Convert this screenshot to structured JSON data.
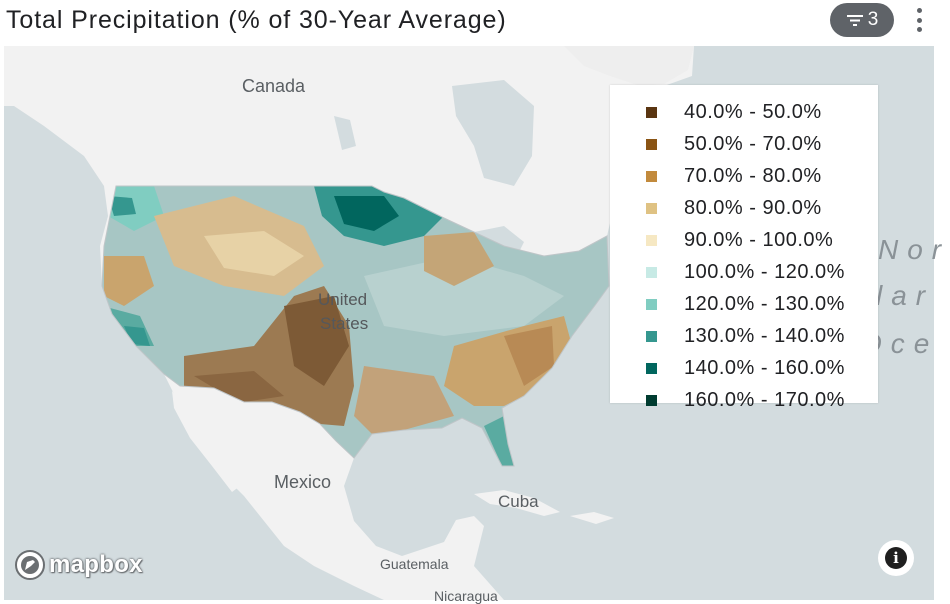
{
  "header": {
    "title": "Total Precipitation (% of 30-Year Average)",
    "filter_count": "3",
    "filter_icon": "filter-icon",
    "menu_icon": "kebab-menu-icon"
  },
  "map": {
    "labels": {
      "canada": "Canada",
      "united": "United",
      "states": "States",
      "mexico": "Mexico",
      "cuba": "Cuba",
      "guatemala": "Guatemala",
      "nicaragua": "Nicaragua",
      "ocean_line1": "Nor",
      "ocean_line2": "lar",
      "ocean_line3": "Oce"
    },
    "attribution": "mapbox",
    "info_icon": "info-icon"
  },
  "legend": {
    "items": [
      {
        "label": "40.0% - 50.0%",
        "color": "#5a3511"
      },
      {
        "label": "50.0% - 70.0%",
        "color": "#8a5414"
      },
      {
        "label": "70.0% - 80.0%",
        "color": "#c28a3c"
      },
      {
        "label": "80.0% - 90.0%",
        "color": "#dfc283"
      },
      {
        "label": "90.0% - 100.0%",
        "color": "#f6e8c3"
      },
      {
        "label": "100.0% - 120.0%",
        "color": "#c7eae5"
      },
      {
        "label": "120.0% - 130.0%",
        "color": "#80cdc1"
      },
      {
        "label": "130.0% - 140.0%",
        "color": "#35978f"
      },
      {
        "label": "140.0% - 160.0%",
        "color": "#01665e"
      },
      {
        "label": "160.0% - 170.0%",
        "color": "#003c30"
      }
    ]
  },
  "colors": {
    "water": "#d3dcdf",
    "land": "#f3f3f3",
    "filter_bg": "#5f6368"
  }
}
